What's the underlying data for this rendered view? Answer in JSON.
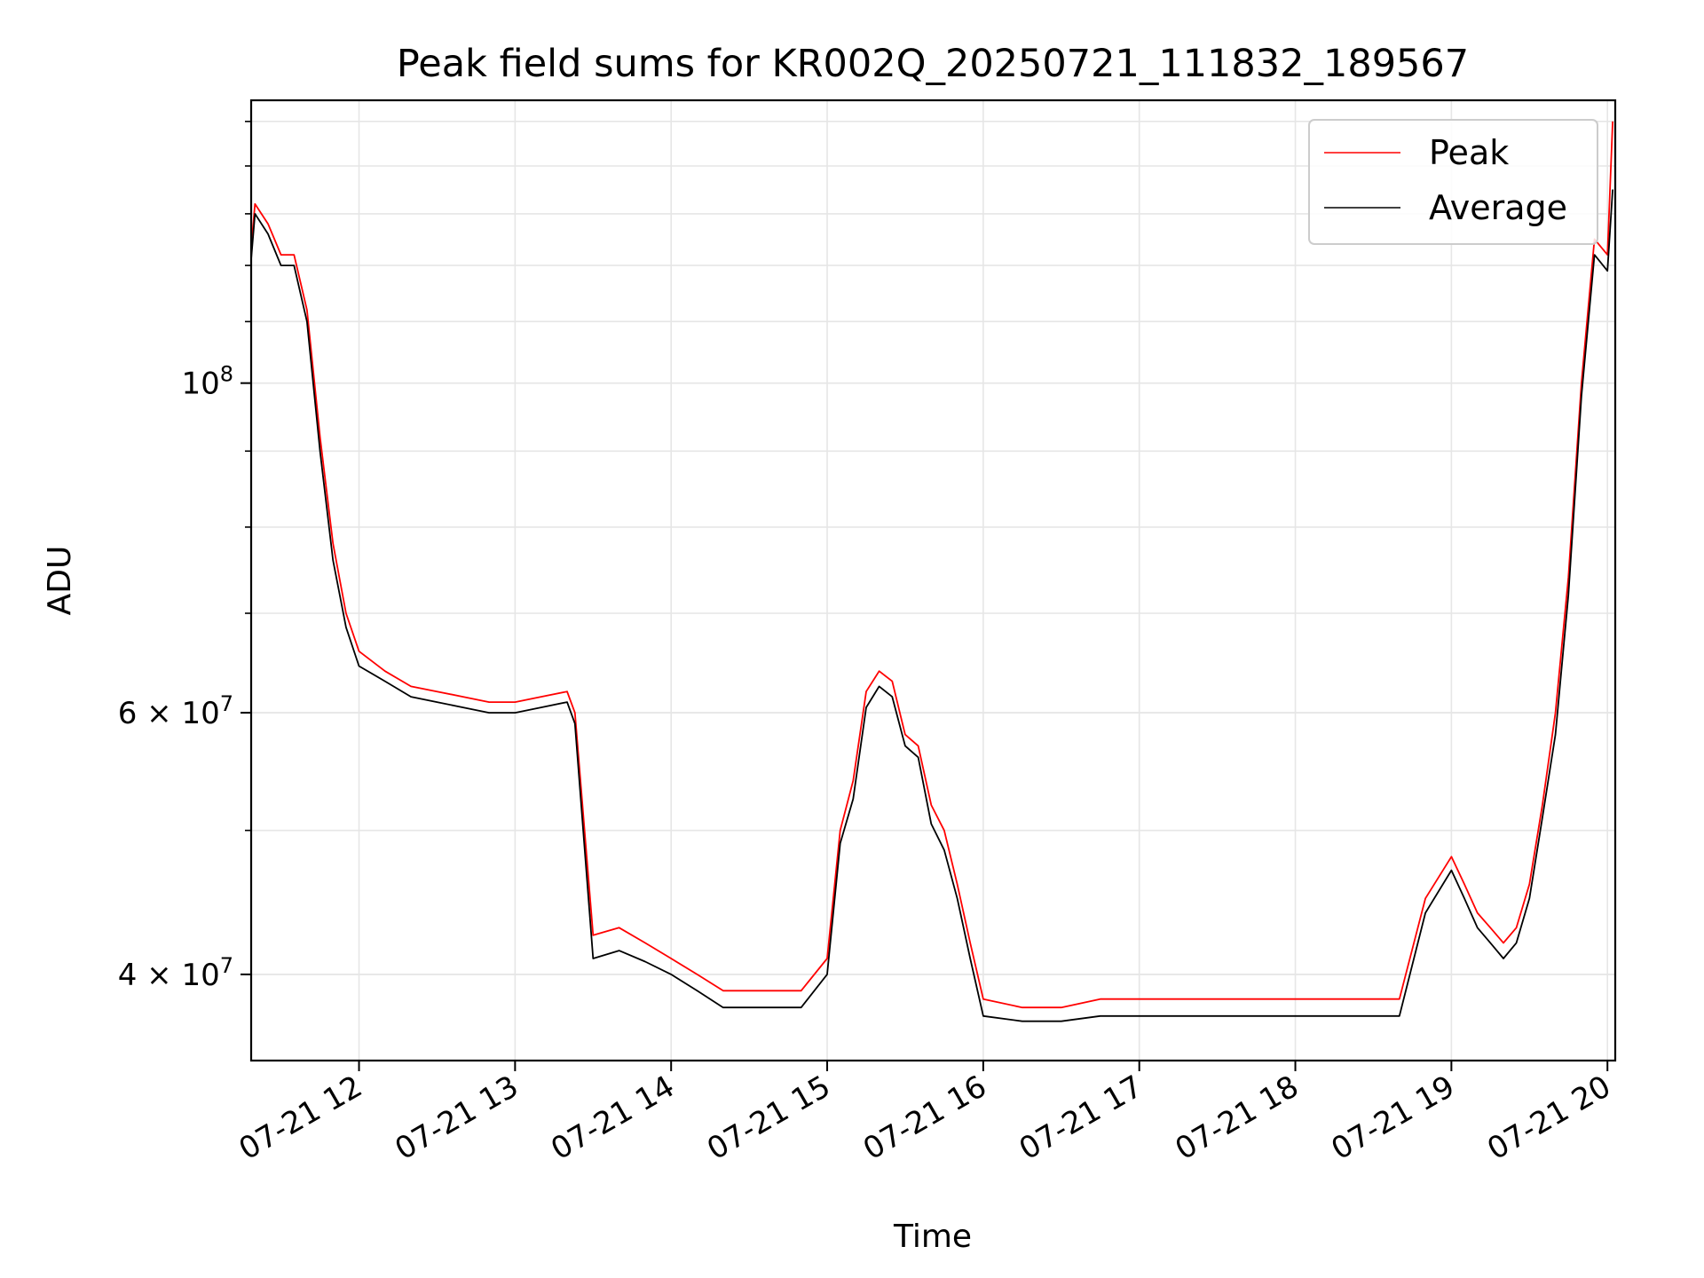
{
  "chart_data": {
    "type": "line",
    "title": "Peak field sums for KR002Q_20250721_111832_189567",
    "xlabel": "Time",
    "ylabel": "ADU",
    "yscale": "log",
    "grid": true,
    "legend_position": "upper right",
    "xlim": [
      "07-21 11:18:32",
      "07-21 20:03:00"
    ],
    "ylim": [
      35000000,
      155000000
    ],
    "x_ticks": [
      "07-21 12",
      "07-21 13",
      "07-21 14",
      "07-21 15",
      "07-21 16",
      "07-21 17",
      "07-21 18",
      "07-21 19",
      "07-21 20"
    ],
    "y_ticks": [
      {
        "value": 100000000,
        "base": "10",
        "exp": "8"
      },
      {
        "value": 60000000,
        "base": "6 × 10",
        "exp": "7"
      },
      {
        "value": 40000000,
        "base": "4 × 10",
        "exp": "7"
      }
    ],
    "x": [
      "07-21 11:18",
      "07-21 11:20",
      "07-21 11:25",
      "07-21 11:30",
      "07-21 11:35",
      "07-21 11:40",
      "07-21 11:45",
      "07-21 11:50",
      "07-21 11:55",
      "07-21 12:00",
      "07-21 12:10",
      "07-21 12:20",
      "07-21 12:30",
      "07-21 12:40",
      "07-21 12:50",
      "07-21 13:00",
      "07-21 13:10",
      "07-21 13:20",
      "07-21 13:23",
      "07-21 13:30",
      "07-21 13:40",
      "07-21 13:50",
      "07-21 14:00",
      "07-21 14:10",
      "07-21 14:20",
      "07-21 14:30",
      "07-21 14:40",
      "07-21 14:50",
      "07-21 15:00",
      "07-21 15:05",
      "07-21 15:10",
      "07-21 15:15",
      "07-21 15:20",
      "07-21 15:25",
      "07-21 15:30",
      "07-21 15:35",
      "07-21 15:40",
      "07-21 15:45",
      "07-21 15:50",
      "07-21 15:55",
      "07-21 16:00",
      "07-21 16:15",
      "07-21 16:30",
      "07-21 16:45",
      "07-21 17:00",
      "07-21 17:15",
      "07-21 17:30",
      "07-21 17:45",
      "07-21 18:00",
      "07-21 18:15",
      "07-21 18:30",
      "07-21 18:40",
      "07-21 18:50",
      "07-21 19:00",
      "07-21 19:05",
      "07-21 19:10",
      "07-21 19:15",
      "07-21 19:20",
      "07-21 19:25",
      "07-21 19:30",
      "07-21 19:35",
      "07-21 19:40",
      "07-21 19:45",
      "07-21 19:50",
      "07-21 19:55",
      "07-21 20:00",
      "07-21 20:02"
    ],
    "series": [
      {
        "name": "Peak",
        "color": "#ff0000",
        "values": [
          120000000,
          132000000,
          128000000,
          122000000,
          122000000,
          112000000,
          92000000,
          78000000,
          70000000,
          66000000,
          64000000,
          62500000,
          62000000,
          61500000,
          61000000,
          61000000,
          61500000,
          62000000,
          60000000,
          42500000,
          43000000,
          42000000,
          41000000,
          40000000,
          39000000,
          39000000,
          39000000,
          39000000,
          41000000,
          50000000,
          54000000,
          62000000,
          64000000,
          63000000,
          58000000,
          57000000,
          52000000,
          50000000,
          46000000,
          42000000,
          38500000,
          38000000,
          38000000,
          38500000,
          38500000,
          38500000,
          38500000,
          38500000,
          38500000,
          38500000,
          38500000,
          38500000,
          45000000,
          48000000,
          46000000,
          44000000,
          43000000,
          42000000,
          43000000,
          46000000,
          52000000,
          60000000,
          74000000,
          100000000,
          125000000,
          122000000,
          150000000
        ]
      },
      {
        "name": "Average",
        "color": "#000000",
        "values": [
          118000000,
          130000000,
          126000000,
          120000000,
          120000000,
          110000000,
          90000000,
          76000000,
          68500000,
          64500000,
          63000000,
          61500000,
          61000000,
          60500000,
          60000000,
          60000000,
          60500000,
          61000000,
          59000000,
          41000000,
          41500000,
          40800000,
          40000000,
          39000000,
          38000000,
          38000000,
          38000000,
          38000000,
          40000000,
          49000000,
          52500000,
          60500000,
          62500000,
          61500000,
          57000000,
          56000000,
          50500000,
          48500000,
          45000000,
          41000000,
          37500000,
          37200000,
          37200000,
          37500000,
          37500000,
          37500000,
          37500000,
          37500000,
          37500000,
          37500000,
          37500000,
          37500000,
          44000000,
          47000000,
          45000000,
          43000000,
          42000000,
          41000000,
          42000000,
          45000000,
          51000000,
          58000000,
          72000000,
          98000000,
          122000000,
          119000000,
          135000000
        ]
      }
    ]
  }
}
